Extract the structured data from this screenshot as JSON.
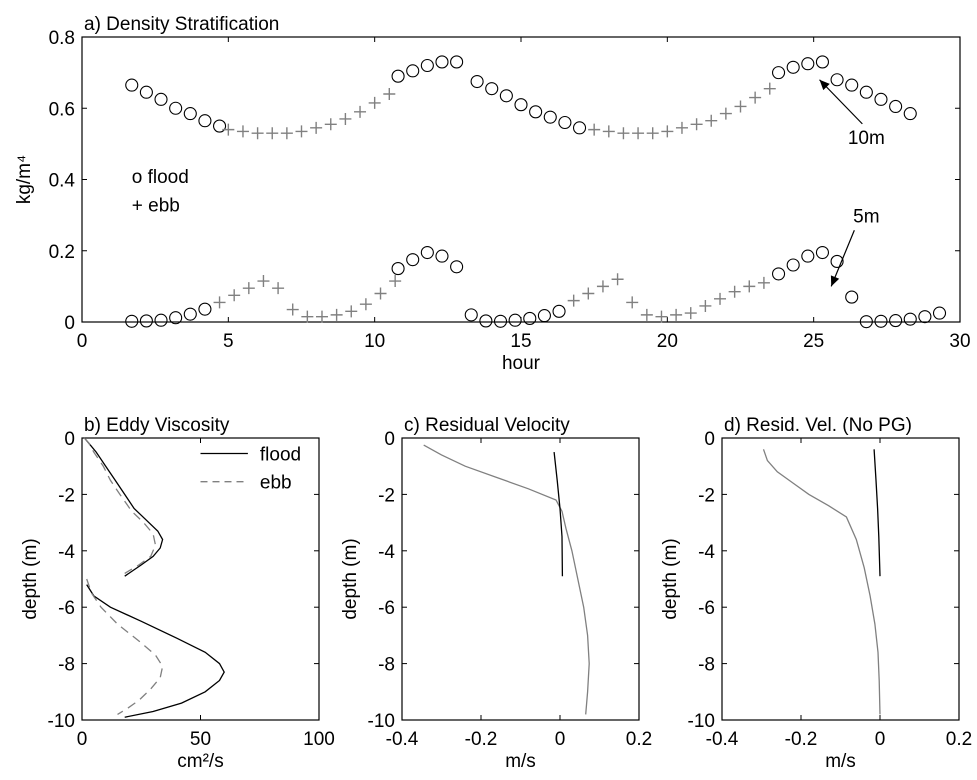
{
  "chart_data": [
    {
      "type": "scatter",
      "title": "a) Density Stratification",
      "xlabel": "hour",
      "ylabel": "kg/m⁴",
      "xlim": [
        0,
        30
      ],
      "ylim": [
        0,
        0.8
      ],
      "xticks": [
        0,
        5,
        10,
        15,
        20,
        25,
        30
      ],
      "yticks": [
        0,
        0.2,
        0.4,
        0.6,
        0.8
      ],
      "ytick_labels": [
        "0",
        "0.2",
        "0.4",
        "0.6",
        "0.8"
      ],
      "legend": [
        {
          "marker": "o",
          "label": "o flood",
          "color": "#000000"
        },
        {
          "marker": "+",
          "label": "+ ebb",
          "color": "#808080"
        }
      ],
      "annotations": [
        {
          "text": "10m",
          "at": [
            26.8,
            0.5
          ],
          "points_to": [
            25.2,
            0.68
          ]
        },
        {
          "text": "5m",
          "at": [
            26.8,
            0.28
          ],
          "points_to": [
            25.6,
            0.1
          ]
        }
      ],
      "series": [
        {
          "group": "10m",
          "marker": "o",
          "points": [
            [
              1.7,
              0.665
            ],
            [
              2.2,
              0.645
            ],
            [
              2.7,
              0.625
            ],
            [
              3.2,
              0.6
            ],
            [
              3.7,
              0.585
            ],
            [
              4.2,
              0.565
            ],
            [
              4.7,
              0.55
            ],
            [
              10.8,
              0.69
            ],
            [
              11.3,
              0.705
            ],
            [
              11.8,
              0.72
            ],
            [
              12.3,
              0.73
            ],
            [
              12.8,
              0.73
            ],
            [
              13.5,
              0.675
            ],
            [
              14.0,
              0.655
            ],
            [
              14.5,
              0.635
            ],
            [
              15.0,
              0.61
            ],
            [
              15.5,
              0.59
            ],
            [
              16.0,
              0.575
            ],
            [
              16.5,
              0.56
            ],
            [
              17.0,
              0.545
            ],
            [
              23.8,
              0.7
            ],
            [
              24.3,
              0.715
            ],
            [
              24.8,
              0.725
            ],
            [
              25.3,
              0.73
            ],
            [
              25.8,
              0.68
            ],
            [
              26.3,
              0.665
            ],
            [
              26.8,
              0.645
            ],
            [
              27.3,
              0.625
            ],
            [
              27.8,
              0.605
            ],
            [
              28.3,
              0.585
            ]
          ]
        },
        {
          "group": "10m",
          "marker": "+",
          "points": [
            [
              5.0,
              0.54
            ],
            [
              5.5,
              0.535
            ],
            [
              6.0,
              0.53
            ],
            [
              6.5,
              0.53
            ],
            [
              7.0,
              0.53
            ],
            [
              7.5,
              0.535
            ],
            [
              8.0,
              0.545
            ],
            [
              8.5,
              0.555
            ],
            [
              9.0,
              0.57
            ],
            [
              9.5,
              0.59
            ],
            [
              10.0,
              0.615
            ],
            [
              10.5,
              0.64
            ],
            [
              17.5,
              0.54
            ],
            [
              18.0,
              0.535
            ],
            [
              18.5,
              0.53
            ],
            [
              19.0,
              0.53
            ],
            [
              19.5,
              0.53
            ],
            [
              20.0,
              0.535
            ],
            [
              20.5,
              0.545
            ],
            [
              21.0,
              0.555
            ],
            [
              21.5,
              0.565
            ],
            [
              22.0,
              0.585
            ],
            [
              22.5,
              0.605
            ],
            [
              23.0,
              0.63
            ],
            [
              23.5,
              0.655
            ]
          ]
        },
        {
          "group": "5m",
          "marker": "o",
          "points": [
            [
              1.7,
              0.002
            ],
            [
              2.2,
              0.003
            ],
            [
              2.7,
              0.005
            ],
            [
              3.2,
              0.012
            ],
            [
              3.7,
              0.022
            ],
            [
              4.2,
              0.036
            ],
            [
              10.8,
              0.15
            ],
            [
              11.3,
              0.175
            ],
            [
              11.8,
              0.195
            ],
            [
              12.3,
              0.185
            ],
            [
              12.8,
              0.155
            ],
            [
              13.3,
              0.02
            ],
            [
              13.8,
              0.003
            ],
            [
              14.3,
              0.002
            ],
            [
              14.8,
              0.005
            ],
            [
              15.3,
              0.01
            ],
            [
              15.8,
              0.018
            ],
            [
              16.3,
              0.03
            ],
            [
              23.8,
              0.135
            ],
            [
              24.3,
              0.16
            ],
            [
              24.8,
              0.185
            ],
            [
              25.3,
              0.195
            ],
            [
              25.8,
              0.17
            ],
            [
              26.3,
              0.07
            ],
            [
              26.8,
              0.001
            ],
            [
              27.3,
              0.002
            ],
            [
              27.8,
              0.004
            ],
            [
              28.3,
              0.008
            ],
            [
              28.8,
              0.015
            ],
            [
              29.3,
              0.025
            ]
          ]
        },
        {
          "group": "5m",
          "marker": "+",
          "points": [
            [
              4.7,
              0.055
            ],
            [
              5.2,
              0.075
            ],
            [
              5.7,
              0.095
            ],
            [
              6.2,
              0.115
            ],
            [
              6.7,
              0.095
            ],
            [
              7.2,
              0.035
            ],
            [
              7.7,
              0.015
            ],
            [
              8.2,
              0.015
            ],
            [
              8.7,
              0.02
            ],
            [
              9.2,
              0.03
            ],
            [
              9.7,
              0.05
            ],
            [
              10.2,
              0.08
            ],
            [
              10.7,
              0.115
            ],
            [
              16.8,
              0.06
            ],
            [
              17.3,
              0.08
            ],
            [
              17.8,
              0.1
            ],
            [
              18.3,
              0.12
            ],
            [
              18.8,
              0.055
            ],
            [
              19.3,
              0.02
            ],
            [
              19.8,
              0.015
            ],
            [
              20.3,
              0.02
            ],
            [
              20.8,
              0.025
            ],
            [
              21.3,
              0.045
            ],
            [
              21.8,
              0.065
            ],
            [
              22.3,
              0.085
            ],
            [
              22.8,
              0.1
            ],
            [
              23.3,
              0.11
            ]
          ]
        }
      ]
    },
    {
      "type": "line",
      "title": "b) Eddy Viscosity",
      "xlabel": "cm²/s",
      "ylabel": "depth (m)",
      "xlim": [
        0,
        100
      ],
      "ylim": [
        -10,
        0
      ],
      "xticks": [
        0,
        50,
        100
      ],
      "yticks": [
        -10,
        -8,
        -6,
        -4,
        -2,
        0
      ],
      "legend": [
        {
          "label": "flood",
          "style": "solid"
        },
        {
          "label": "ebb",
          "style": "dashed"
        }
      ],
      "series": [
        {
          "name": "flood",
          "style": "solid",
          "color": "#000000",
          "points": [
            [
              1,
              0
            ],
            [
              3,
              -0.2
            ],
            [
              6,
              -0.5
            ],
            [
              10,
              -1
            ],
            [
              14,
              -1.5
            ],
            [
              18,
              -2
            ],
            [
              22,
              -2.5
            ],
            [
              27,
              -2.9
            ],
            [
              32,
              -3.3
            ],
            [
              34,
              -3.6
            ],
            [
              33,
              -3.9
            ],
            [
              30,
              -4.2
            ],
            [
              25,
              -4.5
            ],
            [
              18,
              -4.9
            ]
          ]
        },
        {
          "name": "flood",
          "style": "solid",
          "color": "#000000",
          "points": [
            [
              2,
              -5.2
            ],
            [
              5,
              -5.6
            ],
            [
              12,
              -6
            ],
            [
              25,
              -6.5
            ],
            [
              40,
              -7.1
            ],
            [
              52,
              -7.6
            ],
            [
              58,
              -8
            ],
            [
              60,
              -8.3
            ],
            [
              58,
              -8.6
            ],
            [
              52,
              -9
            ],
            [
              42,
              -9.4
            ],
            [
              30,
              -9.7
            ],
            [
              18,
              -9.9
            ]
          ]
        },
        {
          "name": "ebb",
          "style": "dashed",
          "color": "#808080",
          "points": [
            [
              1,
              0
            ],
            [
              3,
              -0.2
            ],
            [
              5,
              -0.5
            ],
            [
              9,
              -1
            ],
            [
              12,
              -1.5
            ],
            [
              16,
              -2
            ],
            [
              21,
              -2.6
            ],
            [
              26,
              -3
            ],
            [
              30,
              -3.4
            ],
            [
              31,
              -3.8
            ],
            [
              29,
              -4.2
            ],
            [
              24,
              -4.5
            ],
            [
              18,
              -4.8
            ]
          ]
        },
        {
          "name": "ebb",
          "style": "dashed",
          "color": "#808080",
          "points": [
            [
              2,
              -5
            ],
            [
              4,
              -5.5
            ],
            [
              8,
              -6
            ],
            [
              15,
              -6.6
            ],
            [
              24,
              -7.2
            ],
            [
              31,
              -7.7
            ],
            [
              34,
              -8.1
            ],
            [
              33,
              -8.5
            ],
            [
              29,
              -8.9
            ],
            [
              24,
              -9.3
            ],
            [
              19,
              -9.6
            ],
            [
              15,
              -9.8
            ]
          ]
        }
      ]
    },
    {
      "type": "line",
      "title": "c) Residual Velocity",
      "xlabel": "m/s",
      "ylabel": "depth (m)",
      "xlim": [
        -0.4,
        0.2
      ],
      "ylim": [
        -10,
        0
      ],
      "xticks": [
        -0.4,
        -0.2,
        0,
        0.2
      ],
      "yticks": [
        -10,
        -8,
        -6,
        -4,
        -2,
        0
      ],
      "series": [
        {
          "name": "",
          "style": "solid",
          "color": "#808080",
          "points": [
            [
              -0.345,
              -0.25
            ],
            [
              -0.3,
              -0.6
            ],
            [
              -0.24,
              -1.0
            ],
            [
              -0.16,
              -1.4
            ],
            [
              -0.08,
              -1.8
            ],
            [
              -0.01,
              -2.2
            ],
            [
              0.005,
              -2.6
            ],
            [
              0.015,
              -3.2
            ],
            [
              0.03,
              -4
            ],
            [
              0.045,
              -5
            ],
            [
              0.06,
              -6
            ],
            [
              0.07,
              -7
            ],
            [
              0.074,
              -8
            ],
            [
              0.07,
              -9
            ],
            [
              0.065,
              -9.8
            ]
          ]
        },
        {
          "name": "",
          "style": "solid",
          "color": "#000000",
          "points": [
            [
              -0.015,
              -0.5
            ],
            [
              -0.007,
              -1.5
            ],
            [
              0,
              -2.5
            ],
            [
              0.005,
              -3.5
            ],
            [
              0.006,
              -4.9
            ]
          ]
        }
      ]
    },
    {
      "type": "line",
      "title": "d) Resid. Vel. (No PG)",
      "xlabel": "m/s",
      "ylabel": "depth (m)",
      "xlim": [
        -0.4,
        0.2
      ],
      "ylim": [
        -10,
        0
      ],
      "xticks": [
        -0.4,
        -0.2,
        0,
        0.2
      ],
      "yticks": [
        -10,
        -8,
        -6,
        -4,
        -2,
        0
      ],
      "series": [
        {
          "name": "",
          "style": "solid",
          "color": "#808080",
          "points": [
            [
              -0.295,
              -0.4
            ],
            [
              -0.285,
              -0.8
            ],
            [
              -0.26,
              -1.2
            ],
            [
              -0.22,
              -1.6
            ],
            [
              -0.18,
              -2.0
            ],
            [
              -0.13,
              -2.4
            ],
            [
              -0.085,
              -2.8
            ],
            [
              -0.06,
              -3.6
            ],
            [
              -0.04,
              -4.6
            ],
            [
              -0.025,
              -5.6
            ],
            [
              -0.013,
              -6.6
            ],
            [
              -0.005,
              -7.6
            ],
            [
              -0.002,
              -8.6
            ],
            [
              0,
              -9.8
            ]
          ]
        },
        {
          "name": "",
          "style": "solid",
          "color": "#000000",
          "points": [
            [
              -0.015,
              -0.4
            ],
            [
              -0.01,
              -1.5
            ],
            [
              -0.006,
              -2.5
            ],
            [
              -0.003,
              -3.5
            ],
            [
              0,
              -4.9
            ]
          ]
        }
      ]
    }
  ]
}
